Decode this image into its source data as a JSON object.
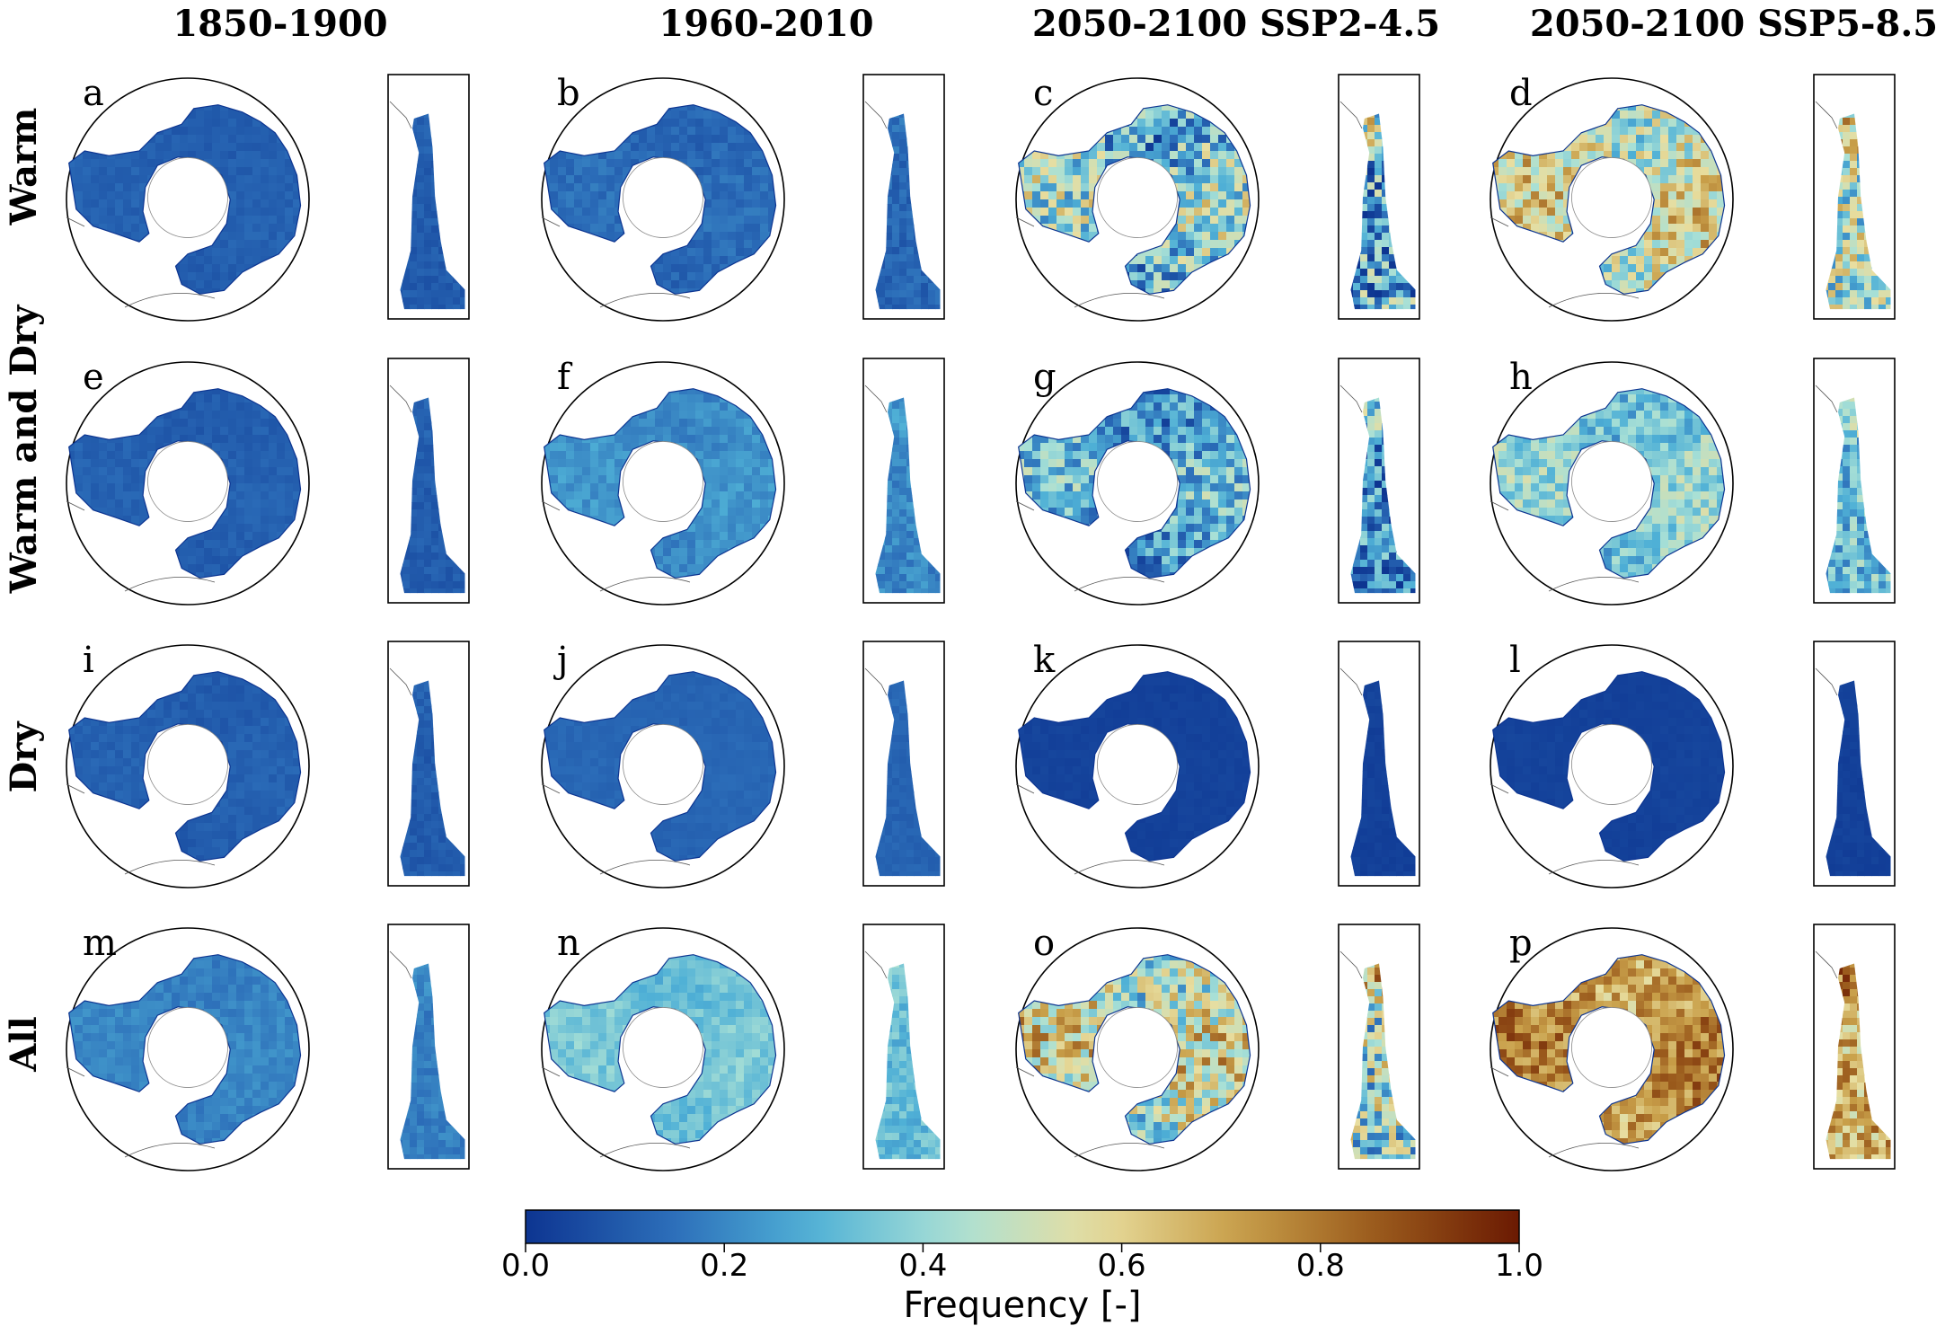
{
  "chart_data": {
    "type": "heatmap",
    "column_titles": [
      "1850-1900",
      "1960-2010",
      "2050-2100 SSP2-4.5",
      "2050-2100 SSP5-8.5"
    ],
    "row_labels": [
      "Warm",
      "Warm and Dry",
      "Dry",
      "All"
    ],
    "panel_letters": [
      [
        "a",
        "b",
        "c",
        "d"
      ],
      [
        "e",
        "f",
        "g",
        "h"
      ],
      [
        "i",
        "j",
        "k",
        "l"
      ],
      [
        "m",
        "n",
        "o",
        "p"
      ]
    ],
    "approx_mean_frequency": [
      [
        0.1,
        0.12,
        0.25,
        0.45
      ],
      [
        0.1,
        0.2,
        0.2,
        0.32
      ],
      [
        0.1,
        0.12,
        0.03,
        0.03
      ],
      [
        0.18,
        0.32,
        0.42,
        0.68
      ]
    ],
    "approx_max_frequency": [
      [
        0.15,
        0.2,
        0.8,
        0.9
      ],
      [
        0.15,
        0.3,
        0.6,
        0.6
      ],
      [
        0.15,
        0.15,
        0.05,
        0.05
      ],
      [
        0.25,
        0.45,
        0.95,
        1.0
      ]
    ],
    "colorbar": {
      "label": "Frequency [-]",
      "ticks": [
        "0.0",
        "0.2",
        "0.4",
        "0.6",
        "0.8",
        "1.0"
      ],
      "range": [
        0,
        1
      ],
      "colors": [
        "#0d3591",
        "#2b6cb8",
        "#4fb0d6",
        "#a8e0d6",
        "#e8dea0",
        "#c9a04a",
        "#9a5a1c",
        "#6b1a02"
      ]
    }
  }
}
